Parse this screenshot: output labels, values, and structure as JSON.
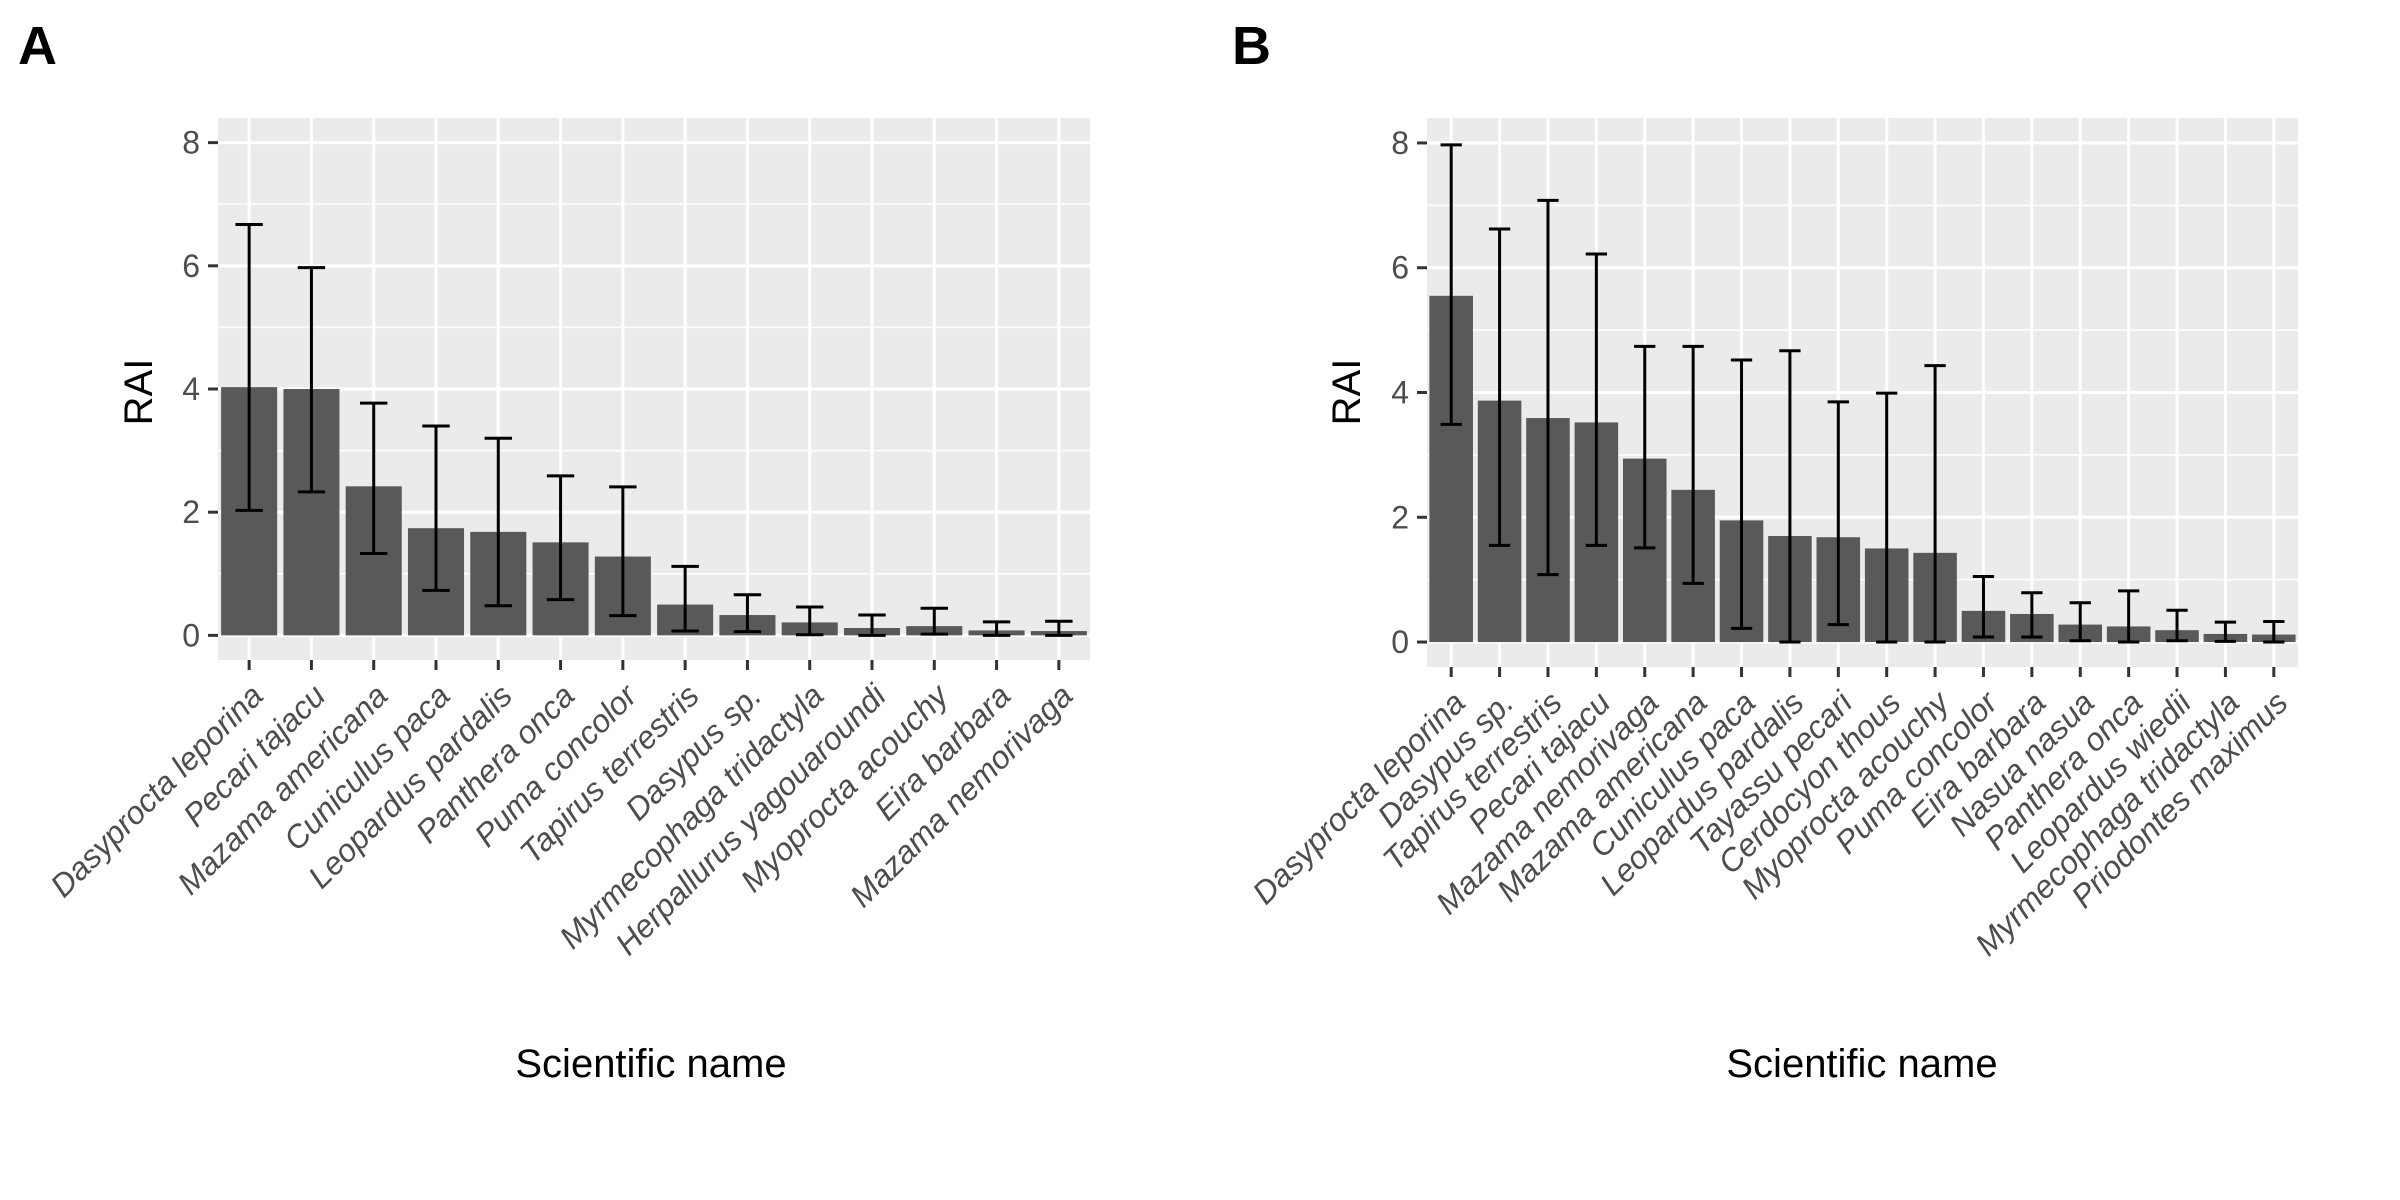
{
  "chart_data": [
    {
      "panel": "A",
      "type": "bar",
      "xlabel": "Scientific name",
      "ylabel": "RAI",
      "ylim": [
        -0.4,
        8.4
      ],
      "yticks": [
        0,
        2,
        4,
        6,
        8
      ],
      "grid": true,
      "categories": [
        "Dasyprocta leporina",
        "Pecari tajacu",
        "Mazama americana",
        "Cuniculus paca",
        "Leopardus pardalis",
        "Panthera onca",
        "Puma concolor",
        "Tapirus terrestris",
        "Dasypus sp.",
        "Myrmecophaga tridactyla",
        "Herpallurus yagouaroundi",
        "Myoprocta acouchy",
        "Eira barbara",
        "Mazama nemorivaga"
      ],
      "values": [
        4.03,
        4.0,
        2.42,
        1.74,
        1.68,
        1.51,
        1.28,
        0.5,
        0.33,
        0.21,
        0.12,
        0.15,
        0.08,
        0.07
      ],
      "error_low": [
        2.03,
        2.33,
        1.33,
        0.73,
        0.48,
        0.58,
        0.32,
        0.07,
        0.06,
        0.01,
        0.0,
        0.02,
        0.0,
        0.0
      ],
      "error_high": [
        6.67,
        5.97,
        3.77,
        3.4,
        3.2,
        2.59,
        2.41,
        1.12,
        0.66,
        0.46,
        0.33,
        0.44,
        0.22,
        0.23
      ],
      "colors": {
        "bar": "#595959",
        "panel_bg": "#ebebeb",
        "grid": "#ffffff",
        "error": "#000000"
      }
    },
    {
      "panel": "B",
      "type": "bar",
      "xlabel": "Scientific name",
      "ylabel": "RAI",
      "ylim": [
        -0.4,
        8.4
      ],
      "yticks": [
        0,
        2,
        4,
        6,
        8
      ],
      "grid": true,
      "categories": [
        "Dasyprocta leporina",
        "Dasypus sp.",
        "Tapirus terrestris",
        "Pecari tajacu",
        "Mazama nemorivaga",
        "Mazama americana",
        "Cuniculus paca",
        "Leopardus pardalis",
        "Tayassu pecari",
        "Cerdocyon thous",
        "Myoprocta acouchy",
        "Puma concolor",
        "Eira barbara",
        "Nasua nasua",
        "Panthera onca",
        "Leopardus wiedii",
        "Myrmecophaga tridactyla",
        "Priodontes maximus"
      ],
      "values": [
        5.55,
        3.87,
        3.59,
        3.52,
        2.94,
        2.44,
        1.95,
        1.7,
        1.68,
        1.5,
        1.43,
        0.5,
        0.45,
        0.28,
        0.25,
        0.19,
        0.13,
        0.12
      ],
      "error_low": [
        3.49,
        1.55,
        1.08,
        1.55,
        1.51,
        0.94,
        0.22,
        0.0,
        0.28,
        0.0,
        0.0,
        0.08,
        0.08,
        0.02,
        0.0,
        0.02,
        0.01,
        0.0
      ],
      "error_high": [
        7.97,
        6.62,
        7.08,
        6.22,
        4.74,
        4.74,
        4.52,
        4.67,
        3.85,
        3.99,
        4.43,
        1.05,
        0.79,
        0.63,
        0.82,
        0.51,
        0.32,
        0.33
      ],
      "colors": {
        "bar": "#595959",
        "panel_bg": "#ebebeb",
        "grid": "#ffffff",
        "error": "#000000"
      }
    }
  ]
}
